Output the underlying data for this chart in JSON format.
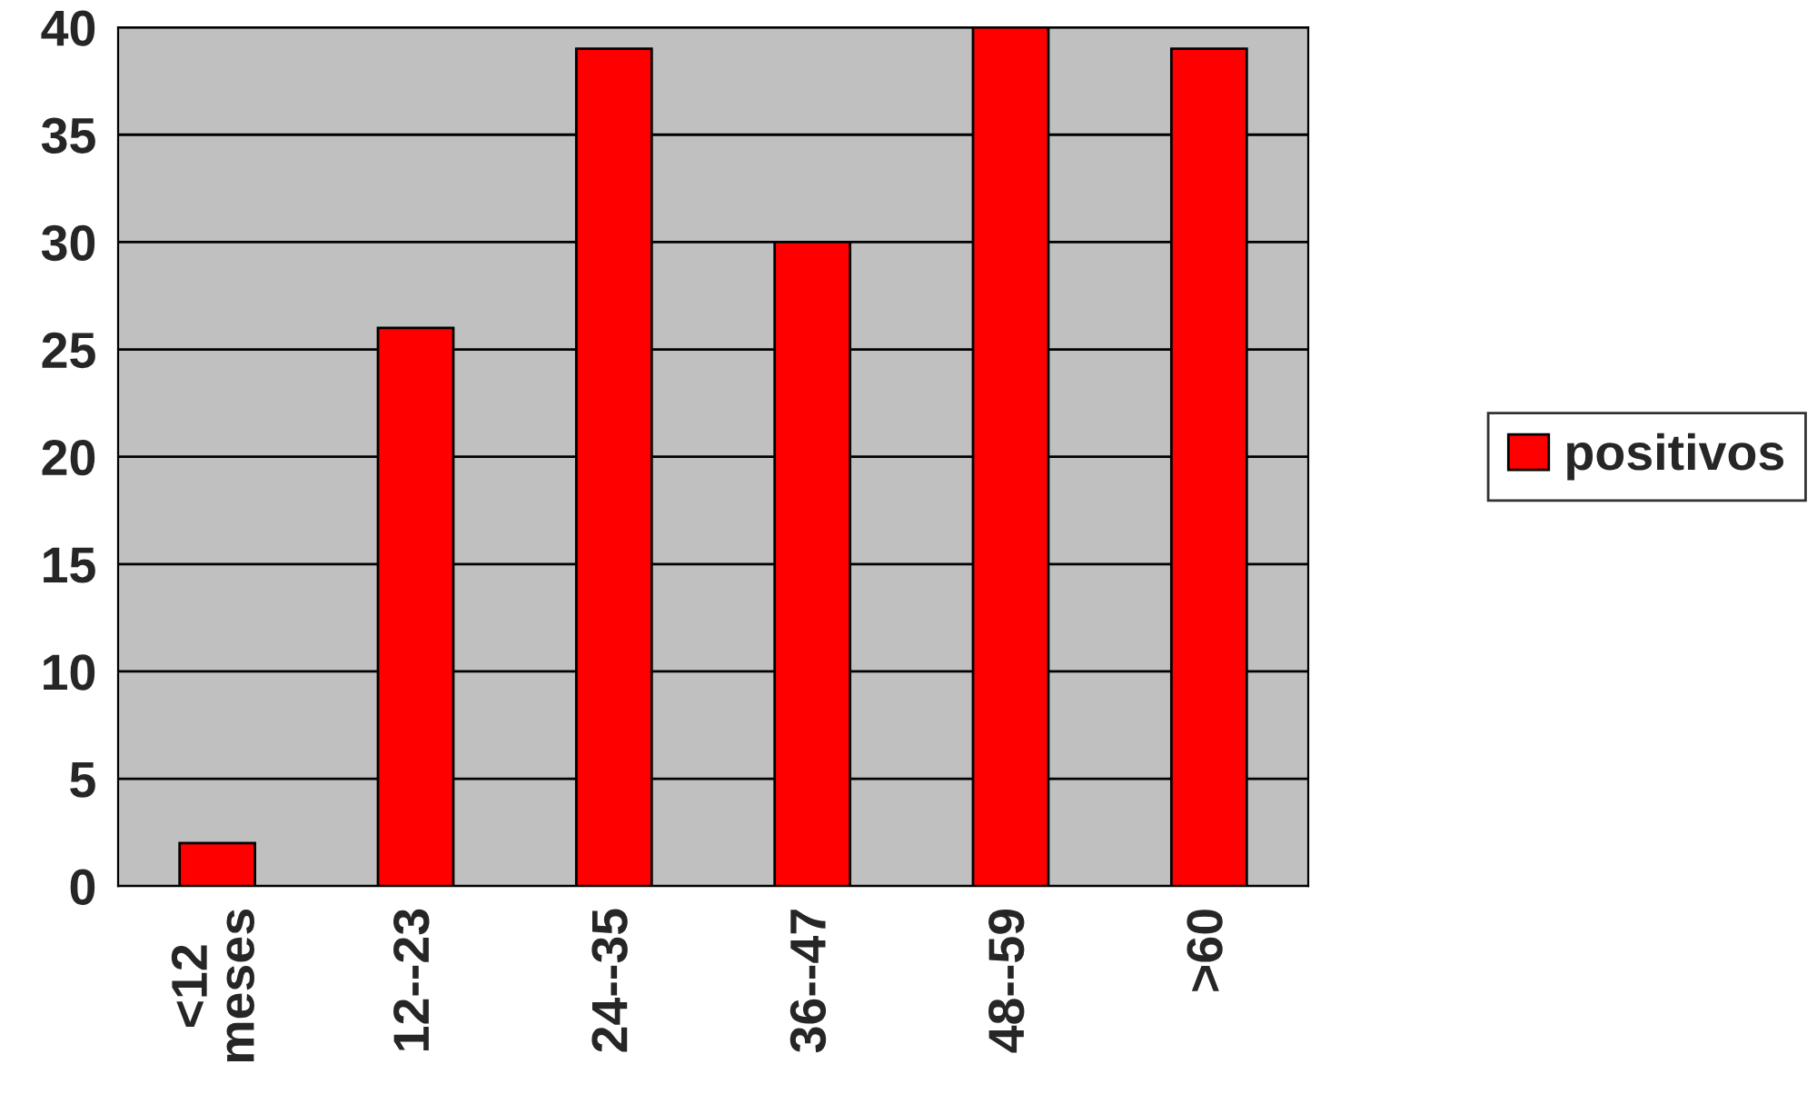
{
  "chart_data": {
    "type": "bar",
    "categories": [
      "<12\nmeses",
      "12--23",
      "24--35",
      "36--47",
      "48--59",
      ">60"
    ],
    "series": [
      {
        "name": "positivos",
        "color": "#ff0000",
        "values": [
          2,
          26,
          39,
          30,
          40,
          39
        ]
      }
    ],
    "ylim": [
      0,
      40
    ],
    "yticks": [
      0,
      5,
      10,
      15,
      20,
      25,
      30,
      35,
      40
    ],
    "grid": "y",
    "legend": "right"
  }
}
